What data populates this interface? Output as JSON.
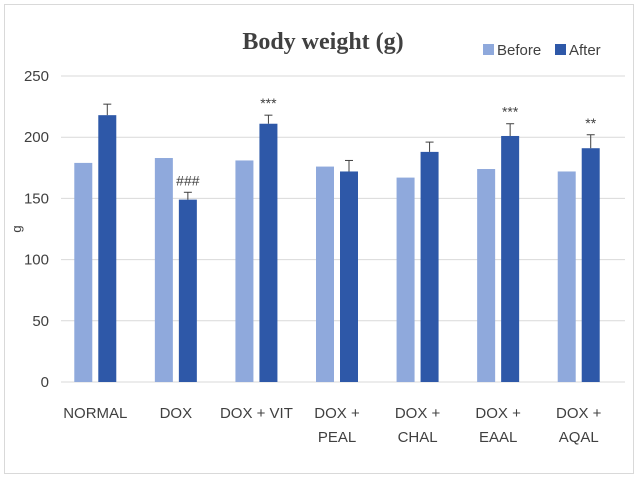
{
  "chart_data": {
    "type": "bar",
    "title": "Body weight (g)",
    "ylabel": "g",
    "xlabel": "",
    "ylim": [
      0,
      250
    ],
    "yticks": [
      0,
      50,
      100,
      150,
      200,
      250
    ],
    "grid": true,
    "legend_position": "top-right",
    "categories": [
      [
        "NORMAL"
      ],
      [
        "DOX"
      ],
      [
        "DOX + VIT"
      ],
      [
        "DOX +",
        "PEAL"
      ],
      [
        "DOX +",
        "CHAL"
      ],
      [
        "DOX +",
        "EAAL"
      ],
      [
        "DOX +",
        "AQAL"
      ]
    ],
    "series": [
      {
        "name": "Before",
        "color": "#8fa9dc",
        "values": [
          179,
          183,
          181,
          176,
          167,
          174,
          172
        ],
        "errors": [
          0,
          0,
          0,
          0,
          0,
          0,
          0
        ]
      },
      {
        "name": "After",
        "color": "#2e58a8",
        "values": [
          218,
          149,
          211,
          172,
          188,
          201,
          191
        ],
        "errors": [
          9,
          6,
          7,
          9,
          8,
          10,
          11
        ]
      }
    ],
    "annotations": [
      "",
      "###",
      "***",
      "",
      "",
      "***",
      "**"
    ]
  }
}
